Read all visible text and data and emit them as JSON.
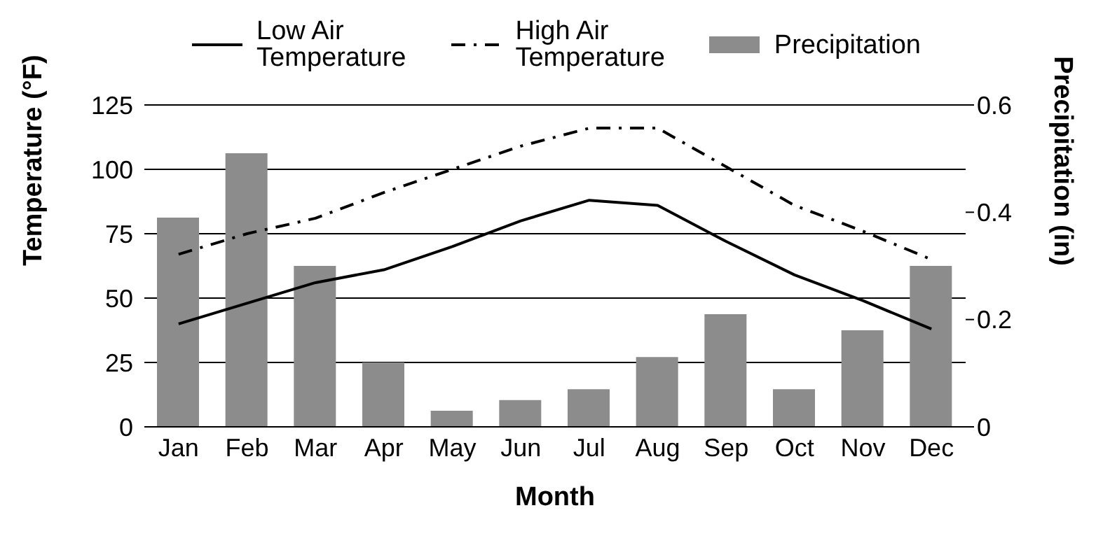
{
  "chart_data": {
    "type": "bar",
    "xlabel": "Month",
    "ylabel": "Temperature (°F)",
    "y2label": "Precipitation (in)",
    "categories": [
      "Jan",
      "Feb",
      "Mar",
      "Apr",
      "May",
      "Jun",
      "Jul",
      "Aug",
      "Sep",
      "Oct",
      "Nov",
      "Dec"
    ],
    "series": [
      {
        "name": "Low Air Temperature",
        "type": "line",
        "color": "#000000",
        "line_style": "solid",
        "values": [
          40,
          48,
          56,
          61,
          70,
          80,
          88,
          86,
          72,
          59,
          49,
          38
        ]
      },
      {
        "name": "High Air Temperature",
        "type": "line",
        "color": "#000000",
        "line_style": "dashed",
        "values": [
          67,
          75,
          81,
          91,
          100,
          109,
          116,
          116,
          101,
          86,
          76,
          65
        ]
      },
      {
        "name": "Precipitation",
        "axis": "y2",
        "color": "#8c8c8c",
        "values": [
          0.39,
          0.51,
          0.3,
          0.12,
          0.03,
          0.05,
          0.07,
          0.13,
          0.21,
          0.07,
          0.18,
          0.3
        ]
      }
    ],
    "ylim": [
      0,
      125
    ],
    "yticks": [
      0,
      25,
      50,
      75,
      100,
      125
    ],
    "y2lim": [
      0,
      0.6
    ],
    "y2ticks": [
      0,
      0.2,
      0.4,
      0.6
    ],
    "grid": "y",
    "legend": "top",
    "marker": "none"
  }
}
